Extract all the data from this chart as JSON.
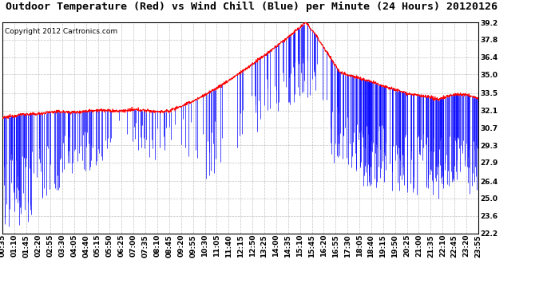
{
  "title": "Outdoor Temperature (Red) vs Wind Chill (Blue) per Minute (24 Hours) 20120126",
  "copyright": "Copyright 2012 Cartronics.com",
  "y_ticks": [
    22.2,
    23.6,
    25.0,
    26.4,
    27.9,
    29.3,
    30.7,
    32.1,
    33.5,
    35.0,
    36.4,
    37.8,
    39.2
  ],
  "y_min": 22.2,
  "y_max": 39.2,
  "x_labels": [
    "00:35",
    "01:10",
    "01:45",
    "02:20",
    "02:55",
    "03:30",
    "04:05",
    "04:40",
    "05:15",
    "05:50",
    "06:25",
    "07:00",
    "07:35",
    "08:10",
    "08:45",
    "09:20",
    "09:55",
    "10:30",
    "11:05",
    "11:40",
    "12:15",
    "12:50",
    "13:25",
    "14:00",
    "14:35",
    "15:10",
    "15:45",
    "16:20",
    "16:55",
    "17:30",
    "18:05",
    "18:40",
    "19:15",
    "19:50",
    "20:25",
    "21:00",
    "21:35",
    "22:10",
    "22:45",
    "23:20",
    "23:55"
  ],
  "title_fontsize": 9.5,
  "copyright_fontsize": 6.5,
  "tick_fontsize": 6.5,
  "bg_color": "#ffffff",
  "plot_bg_color": "#ffffff",
  "grid_color": "#bbbbbb",
  "red_line_color": "#ff0000",
  "blue_bar_color": "#0000ff",
  "num_minutes": 1440
}
